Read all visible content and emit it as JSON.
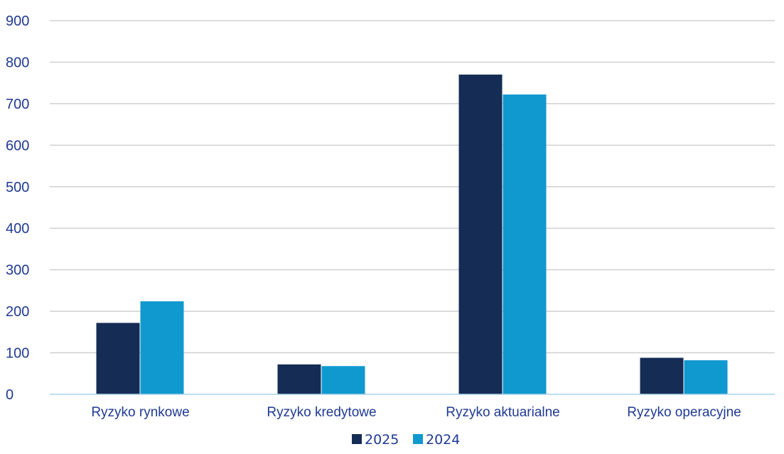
{
  "chart_data": {
    "type": "bar",
    "categories": [
      "Ryzyko rynkowe",
      "Ryzyko kredytowe",
      "Ryzyko aktuarialne",
      "Ryzyko operacyjne"
    ],
    "series": [
      {
        "name": "2025",
        "values": [
          172,
          72,
          770,
          88
        ],
        "color": "#152c55"
      },
      {
        "name": "2024",
        "values": [
          224,
          68,
          722,
          82
        ],
        "color": "#1099cf"
      }
    ],
    "ylim": [
      0,
      900
    ],
    "yticks": [
      0,
      100,
      200,
      300,
      400,
      500,
      600,
      700,
      800,
      900
    ],
    "grid": true,
    "legend_position": "bottom-center",
    "colors": {
      "axis_text": "#1f3a93",
      "grid": "#d0d0d0",
      "baseline": "#a9d4ea"
    }
  }
}
